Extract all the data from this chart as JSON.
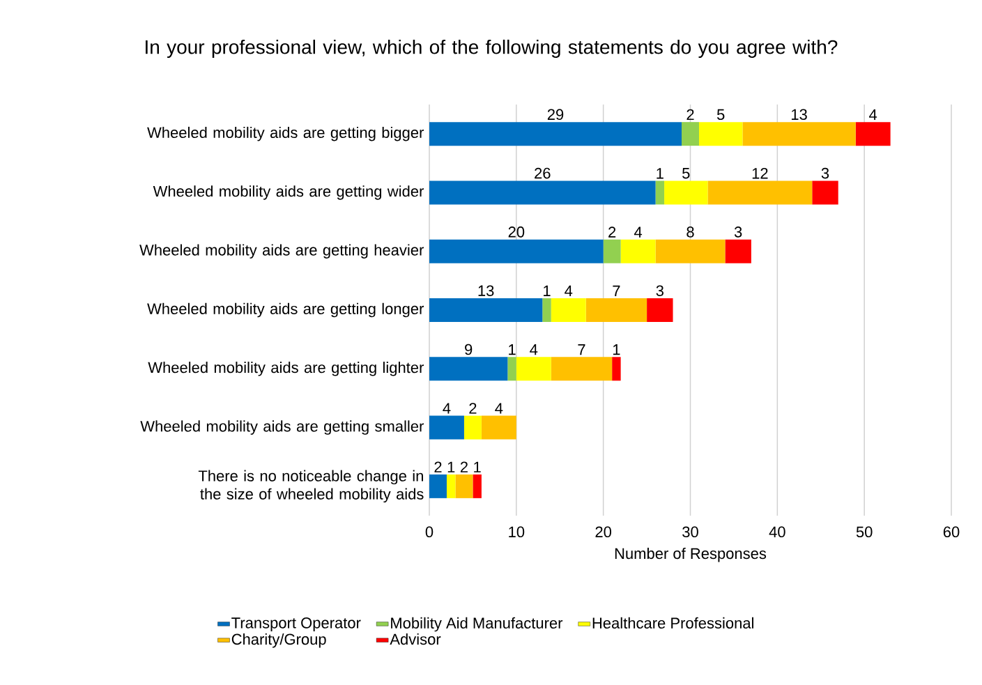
{
  "chart_data": {
    "type": "bar",
    "orientation": "horizontal",
    "stacked": true,
    "title": "In your professional view, which of the following statements do you agree with?",
    "xlabel": "Number of Responses",
    "categories": [
      "Wheeled mobility aids are getting bigger",
      "Wheeled mobility aids are getting wider",
      "Wheeled mobility aids are getting heavier",
      "Wheeled mobility aids are getting longer",
      "Wheeled mobility aids are getting lighter",
      "Wheeled mobility aids are getting smaller",
      "There is no noticeable change in the size of wheeled mobility aids"
    ],
    "series": [
      {
        "name": "Transport Operator",
        "color": "#0070c0",
        "values": [
          29,
          26,
          20,
          13,
          9,
          4,
          2
        ]
      },
      {
        "name": "Mobility Aid Manufacturer",
        "color": "#92d050",
        "values": [
          2,
          1,
          2,
          1,
          1,
          null,
          null
        ]
      },
      {
        "name": "Healthcare Professional",
        "color": "#ffff00",
        "values": [
          5,
          5,
          4,
          4,
          4,
          2,
          1
        ]
      },
      {
        "name": "Charity/Group",
        "color": "#ffc000",
        "values": [
          13,
          12,
          8,
          7,
          7,
          4,
          2
        ]
      },
      {
        "name": "Advisor",
        "color": "#ff0000",
        "values": [
          4,
          3,
          3,
          3,
          1,
          null,
          1
        ]
      }
    ],
    "xlim": [
      0,
      60
    ],
    "xticks": [
      0,
      10,
      20,
      30,
      40,
      50,
      60
    ],
    "grid": "x",
    "legend": "bottom",
    "data_labels": true
  }
}
